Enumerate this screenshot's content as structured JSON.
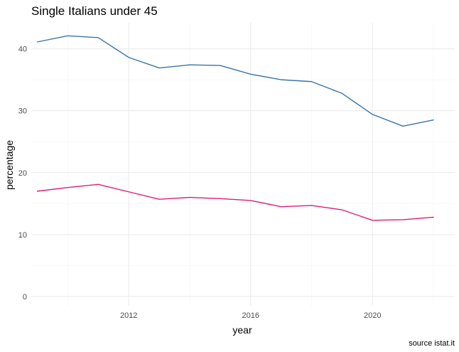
{
  "chart_data": {
    "type": "line",
    "title": "Single Italians under 45",
    "xlabel": "year",
    "ylabel": "percentage",
    "caption": "source istat.it",
    "x": [
      2009,
      2010,
      2011,
      2012,
      2013,
      2014,
      2015,
      2016,
      2017,
      2018,
      2019,
      2020,
      2021,
      2022
    ],
    "xlim": [
      2008.8,
      2022.7
    ],
    "ylim": [
      -1.5,
      44.2
    ],
    "x_ticks": [
      2012,
      2016,
      2020
    ],
    "x_minor_ticks": [
      2010,
      2014,
      2018,
      2022
    ],
    "y_ticks": [
      0,
      10,
      20,
      30,
      40
    ],
    "y_minor_ticks": [
      5,
      15,
      25,
      35
    ],
    "grid": true,
    "legend": "none",
    "series": [
      {
        "color": "#3a74ab",
        "values": [
          41.1,
          42.1,
          41.8,
          38.6,
          36.9,
          37.4,
          37.3,
          35.9,
          35.0,
          34.7,
          32.8,
          29.4,
          27.5,
          28.5
        ]
      },
      {
        "color": "#dd1c77",
        "values": [
          17.0,
          17.6,
          18.1,
          16.9,
          15.7,
          16.0,
          15.8,
          15.5,
          14.5,
          14.7,
          14.0,
          12.3,
          12.4,
          12.8
        ]
      }
    ]
  }
}
